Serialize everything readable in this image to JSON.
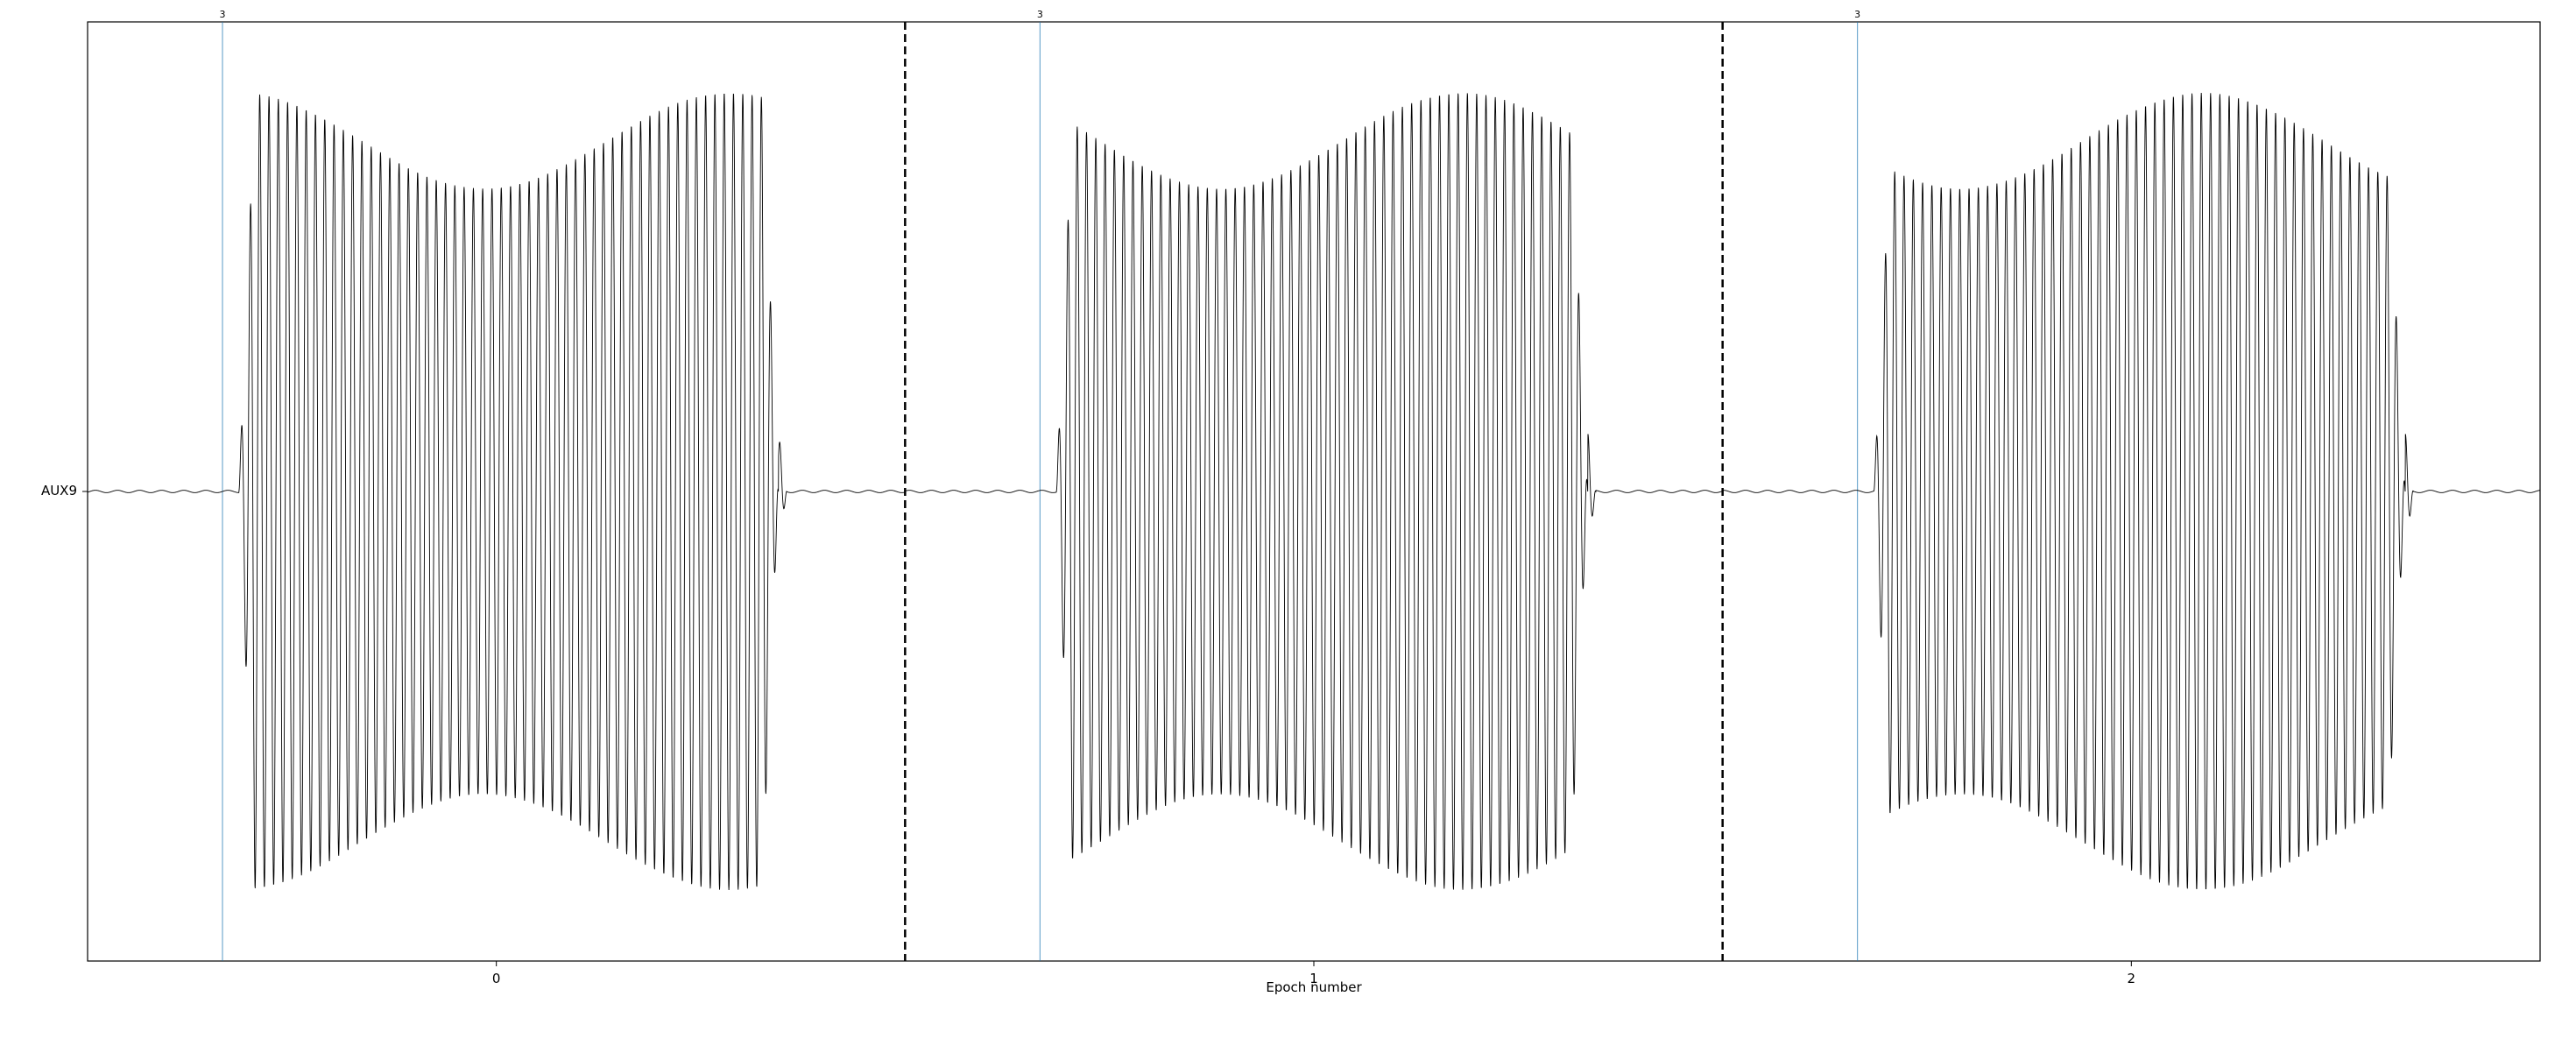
{
  "chart_data": {
    "type": "line",
    "title": "",
    "xlabel": "Epoch number",
    "ylabel": "",
    "channel": "AUX9",
    "x_ticks": [
      "0",
      "1",
      "2"
    ],
    "epochs": [
      {
        "index": 0,
        "event_label": "3",
        "event_time_s": 0.0,
        "burst": {
          "start_s": 0.02,
          "end_s": 0.68,
          "peak_amplitude": 1.0
        }
      },
      {
        "index": 1,
        "event_label": "3",
        "event_time_s": 0.0,
        "burst": {
          "start_s": 0.02,
          "end_s": 0.67,
          "peak_amplitude": 1.0
        }
      },
      {
        "index": 2,
        "event_label": "3",
        "event_time_s": 0.0,
        "burst": {
          "start_s": 0.02,
          "end_s": 0.67,
          "peak_amplitude": 1.0
        }
      }
    ],
    "epoch_tmin_s": -0.165,
    "epoch_tmax_s": 0.835,
    "oscillation_hz": 88,
    "grid": false,
    "legend": "none",
    "colors": {
      "trace": "#000000",
      "event_line": "#1f77b4",
      "separator": "#000000"
    }
  }
}
